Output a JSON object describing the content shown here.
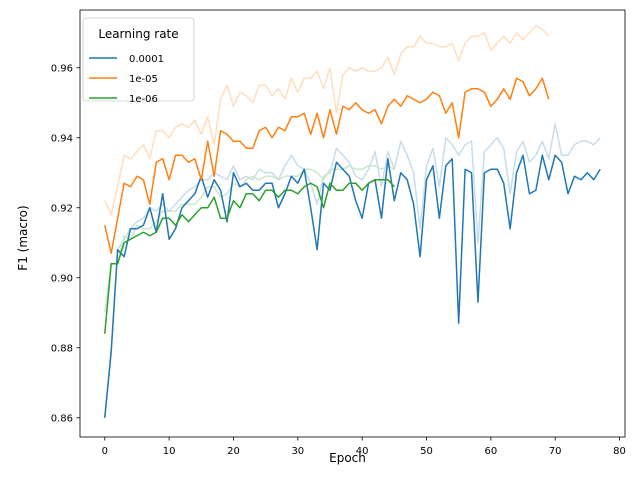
{
  "chart_data": {
    "type": "line",
    "title": "",
    "xlabel": "Epoch",
    "ylabel": "F1 (macro)",
    "xlim": [
      -3.85,
      80.85
    ],
    "ylim": [
      0.8545,
      0.9765
    ],
    "xticks": [
      0,
      10,
      20,
      30,
      40,
      50,
      60,
      70,
      80
    ],
    "yticks": [
      0.86,
      0.88,
      0.9,
      0.92,
      0.94,
      0.96
    ],
    "grid": false,
    "legend": {
      "title": "Learning rate",
      "placement": "upper left"
    },
    "series": [
      {
        "name": "0.0001",
        "color": "#1f77b4",
        "light_color": "#c7dcec",
        "values": [
          0.86,
          0.879,
          0.908,
          0.906,
          0.914,
          0.914,
          0.915,
          0.92,
          0.913,
          0.924,
          0.911,
          0.914,
          0.92,
          0.922,
          0.924,
          0.929,
          0.923,
          0.928,
          0.925,
          0.916,
          0.93,
          0.926,
          0.927,
          0.925,
          0.925,
          0.927,
          0.927,
          0.92,
          0.924,
          0.929,
          0.927,
          0.931,
          0.92,
          0.908,
          0.927,
          0.925,
          0.933,
          0.931,
          0.929,
          0.922,
          0.917,
          0.927,
          0.928,
          0.917,
          0.934,
          0.922,
          0.93,
          0.928,
          0.921,
          0.906,
          0.928,
          0.932,
          0.917,
          0.932,
          0.934,
          0.887,
          0.931,
          0.93,
          0.893,
          0.93,
          0.931,
          0.931,
          0.927,
          0.914,
          0.93,
          0.935,
          0.924,
          0.925,
          0.935,
          0.928,
          0.935,
          0.933,
          0.924,
          0.929,
          0.928,
          0.93,
          0.928,
          0.931
        ],
        "light_values": [
          0.86,
          0.879,
          0.908,
          0.911,
          0.914,
          0.916,
          0.917,
          0.92,
          0.919,
          0.921,
          0.919,
          0.921,
          0.923,
          0.925,
          0.926,
          0.928,
          0.928,
          0.93,
          0.929,
          0.928,
          0.932,
          0.928,
          0.929,
          0.928,
          0.931,
          0.93,
          0.93,
          0.928,
          0.932,
          0.935,
          0.932,
          0.931,
          0.927,
          0.921,
          0.929,
          0.93,
          0.937,
          0.935,
          0.933,
          0.929,
          0.928,
          0.931,
          0.936,
          0.926,
          0.936,
          0.931,
          0.939,
          0.935,
          0.93,
          0.914,
          0.932,
          0.937,
          0.926,
          0.94,
          0.938,
          0.935,
          0.938,
          0.939,
          0.91,
          0.936,
          0.938,
          0.94,
          0.937,
          0.924,
          0.936,
          0.939,
          0.933,
          0.935,
          0.939,
          0.934,
          0.944,
          0.935,
          0.935,
          0.938,
          0.939,
          0.939,
          0.938,
          0.94
        ]
      },
      {
        "name": "1e-05",
        "color": "#ff7f0e",
        "light_color": "#ffddbd",
        "values": [
          0.915,
          0.907,
          0.917,
          0.927,
          0.926,
          0.929,
          0.928,
          0.921,
          0.933,
          0.934,
          0.928,
          0.935,
          0.935,
          0.933,
          0.934,
          0.928,
          0.939,
          0.929,
          0.942,
          0.941,
          0.939,
          0.939,
          0.937,
          0.937,
          0.942,
          0.943,
          0.94,
          0.943,
          0.942,
          0.946,
          0.946,
          0.947,
          0.941,
          0.947,
          0.94,
          0.948,
          0.941,
          0.949,
          0.948,
          0.95,
          0.948,
          0.947,
          0.948,
          0.944,
          0.949,
          0.951,
          0.949,
          0.952,
          0.951,
          0.95,
          0.951,
          0.953,
          0.952,
          0.947,
          0.95,
          0.94,
          0.953,
          0.954,
          0.954,
          0.953,
          0.949,
          0.951,
          0.954,
          0.951,
          0.957,
          0.956,
          0.952,
          0.954,
          0.957,
          0.951
        ],
        "light_values": [
          0.922,
          0.918,
          0.926,
          0.935,
          0.934,
          0.936,
          0.938,
          0.934,
          0.942,
          0.942,
          0.94,
          0.943,
          0.944,
          0.943,
          0.945,
          0.941,
          0.946,
          0.938,
          0.951,
          0.955,
          0.949,
          0.953,
          0.952,
          0.95,
          0.955,
          0.955,
          0.952,
          0.954,
          0.951,
          0.957,
          0.953,
          0.957,
          0.957,
          0.959,
          0.954,
          0.96,
          0.947,
          0.958,
          0.96,
          0.959,
          0.96,
          0.959,
          0.959,
          0.96,
          0.963,
          0.958,
          0.964,
          0.966,
          0.966,
          0.969,
          0.967,
          0.967,
          0.966,
          0.966,
          0.967,
          0.962,
          0.967,
          0.969,
          0.969,
          0.97,
          0.965,
          0.967,
          0.969,
          0.967,
          0.97,
          0.968,
          0.97,
          0.972,
          0.971,
          0.969
        ]
      },
      {
        "name": "1e-06",
        "color": "#2ca02c",
        "light_color": "#c9e7c9",
        "values": [
          0.884,
          0.904,
          0.904,
          0.91,
          0.911,
          0.912,
          0.913,
          0.912,
          0.913,
          0.917,
          0.917,
          0.915,
          0.918,
          0.916,
          0.918,
          0.92,
          0.92,
          0.923,
          0.917,
          0.917,
          0.922,
          0.92,
          0.924,
          0.924,
          0.922,
          0.925,
          0.925,
          0.923,
          0.925,
          0.925,
          0.924,
          0.926,
          0.927,
          0.926,
          0.92,
          0.927,
          0.925,
          0.925,
          0.927,
          0.927,
          0.925,
          0.927,
          0.928,
          0.928,
          0.928,
          0.926
        ],
        "light_values": [
          0.89,
          0.904,
          0.904,
          0.912,
          0.911,
          0.915,
          0.914,
          0.914,
          0.916,
          0.919,
          0.919,
          0.919,
          0.921,
          0.921,
          0.921,
          0.923,
          0.926,
          0.926,
          0.923,
          0.924,
          0.927,
          0.926,
          0.928,
          0.929,
          0.928,
          0.929,
          0.929,
          0.928,
          0.929,
          0.929,
          0.929,
          0.931,
          0.931,
          0.93,
          0.928,
          0.931,
          0.931,
          0.931,
          0.932,
          0.931,
          0.931,
          0.932,
          0.932,
          0.931,
          0.932,
          0.931
        ]
      }
    ]
  }
}
